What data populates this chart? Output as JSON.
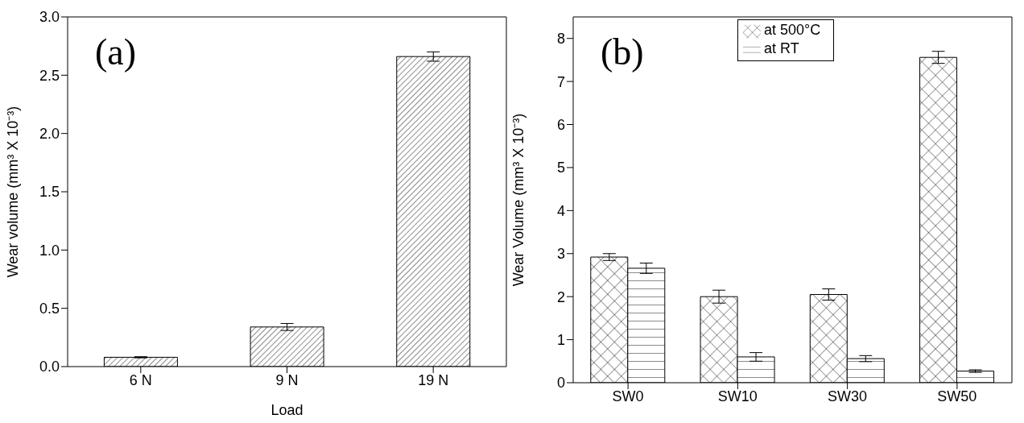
{
  "chart_data": [
    {
      "type": "bar",
      "annotations": [
        "(a)"
      ],
      "xlabel": "Load",
      "ylabel": "Wear volume (mm³ X 10⁻³)",
      "categories": [
        "6 N",
        "9 N",
        "19 N"
      ],
      "values": [
        0.08,
        0.34,
        2.66
      ],
      "errors": [
        0.005,
        0.03,
        0.04
      ],
      "color": "#000000",
      "ylim": [
        0,
        3
      ],
      "yticks": [
        {
          "value": 0,
          "label": "0.0"
        },
        {
          "value": 0.5,
          "label": "0.5"
        },
        {
          "value": 1,
          "label": "1.0"
        },
        {
          "value": 1.5,
          "label": "1.5"
        },
        {
          "value": 2,
          "label": "2.0"
        },
        {
          "value": 2.5,
          "label": "2.5"
        },
        {
          "value": 3,
          "label": "3.0"
        }
      ],
      "grid": false,
      "legend": false
    },
    {
      "type": "bar",
      "annotations": [
        "(b)"
      ],
      "ylabel": "Wear Volume (mm³ X 10⁻³)",
      "categories": [
        "SW0",
        "SW10",
        "SW30",
        "SW50"
      ],
      "series": [
        {
          "name": "at 500°C",
          "color": "#000000",
          "values": [
            2.92,
            2.0,
            2.05,
            7.56
          ],
          "errors": [
            0.08,
            0.15,
            0.13,
            0.14
          ]
        },
        {
          "name": "at RT",
          "color": "#000000",
          "values": [
            2.66,
            0.6,
            0.56,
            0.27
          ],
          "errors": [
            0.12,
            0.1,
            0.07,
            0.03
          ]
        }
      ],
      "ylim": [
        0,
        8.5
      ],
      "yticks": [
        0,
        1,
        2,
        3,
        4,
        5,
        6,
        7,
        8
      ],
      "grid": false,
      "legend": "top"
    }
  ]
}
